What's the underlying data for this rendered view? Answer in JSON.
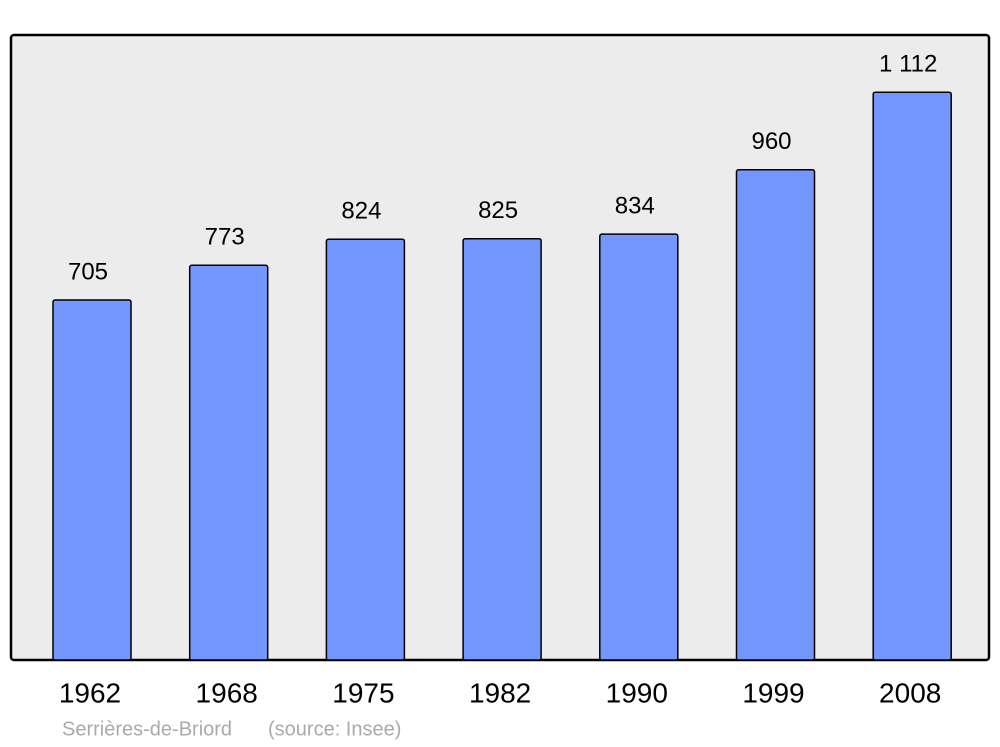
{
  "chart_data": {
    "type": "bar",
    "categories": [
      "1962",
      "1968",
      "1975",
      "1982",
      "1990",
      "1999",
      "2008"
    ],
    "values": [
      705,
      773,
      824,
      825,
      834,
      960,
      1112
    ],
    "value_labels": [
      "705",
      "773",
      "824",
      "825",
      "834",
      "960",
      "1 112"
    ],
    "color": "#7397ff",
    "ylim": [
      0,
      1224
    ],
    "footnote": "Serrières-de-Briord",
    "source": "(source: Insee)"
  }
}
